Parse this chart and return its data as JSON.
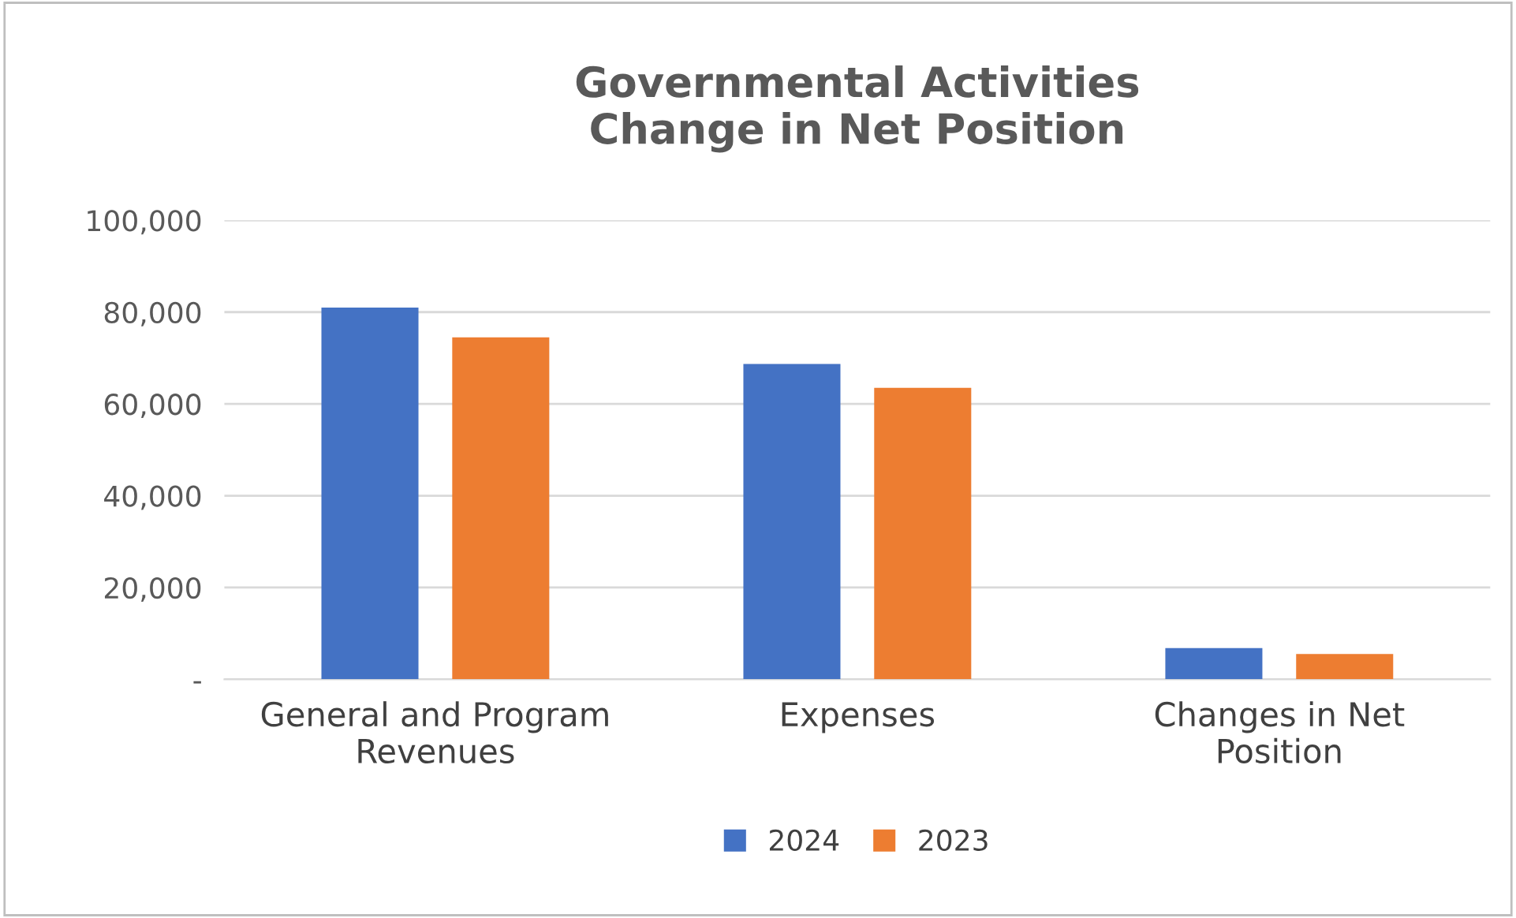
{
  "chart_data": {
    "type": "bar",
    "title": "Governmental Activities\nChange in Net Position",
    "categories": [
      "General and Program\nRevenues",
      "Expenses",
      "Changes in Net\nPosition"
    ],
    "series": [
      {
        "name": "2024",
        "color": "#4472c4",
        "values": [
          81000,
          68700,
          6800
        ]
      },
      {
        "name": "2023",
        "color": "#ed7d31",
        "values": [
          74500,
          63500,
          5500
        ]
      }
    ],
    "ylim": [
      0,
      100000
    ],
    "yticks": [
      {
        "value": 0,
        "label": "-"
      },
      {
        "value": 20000,
        "label": "20,000"
      },
      {
        "value": 40000,
        "label": "40,000"
      },
      {
        "value": 60000,
        "label": "60,000"
      },
      {
        "value": 80000,
        "label": "80,000"
      },
      {
        "value": 100000,
        "label": "100,000"
      }
    ],
    "grid": "y",
    "legend": "bottom"
  }
}
